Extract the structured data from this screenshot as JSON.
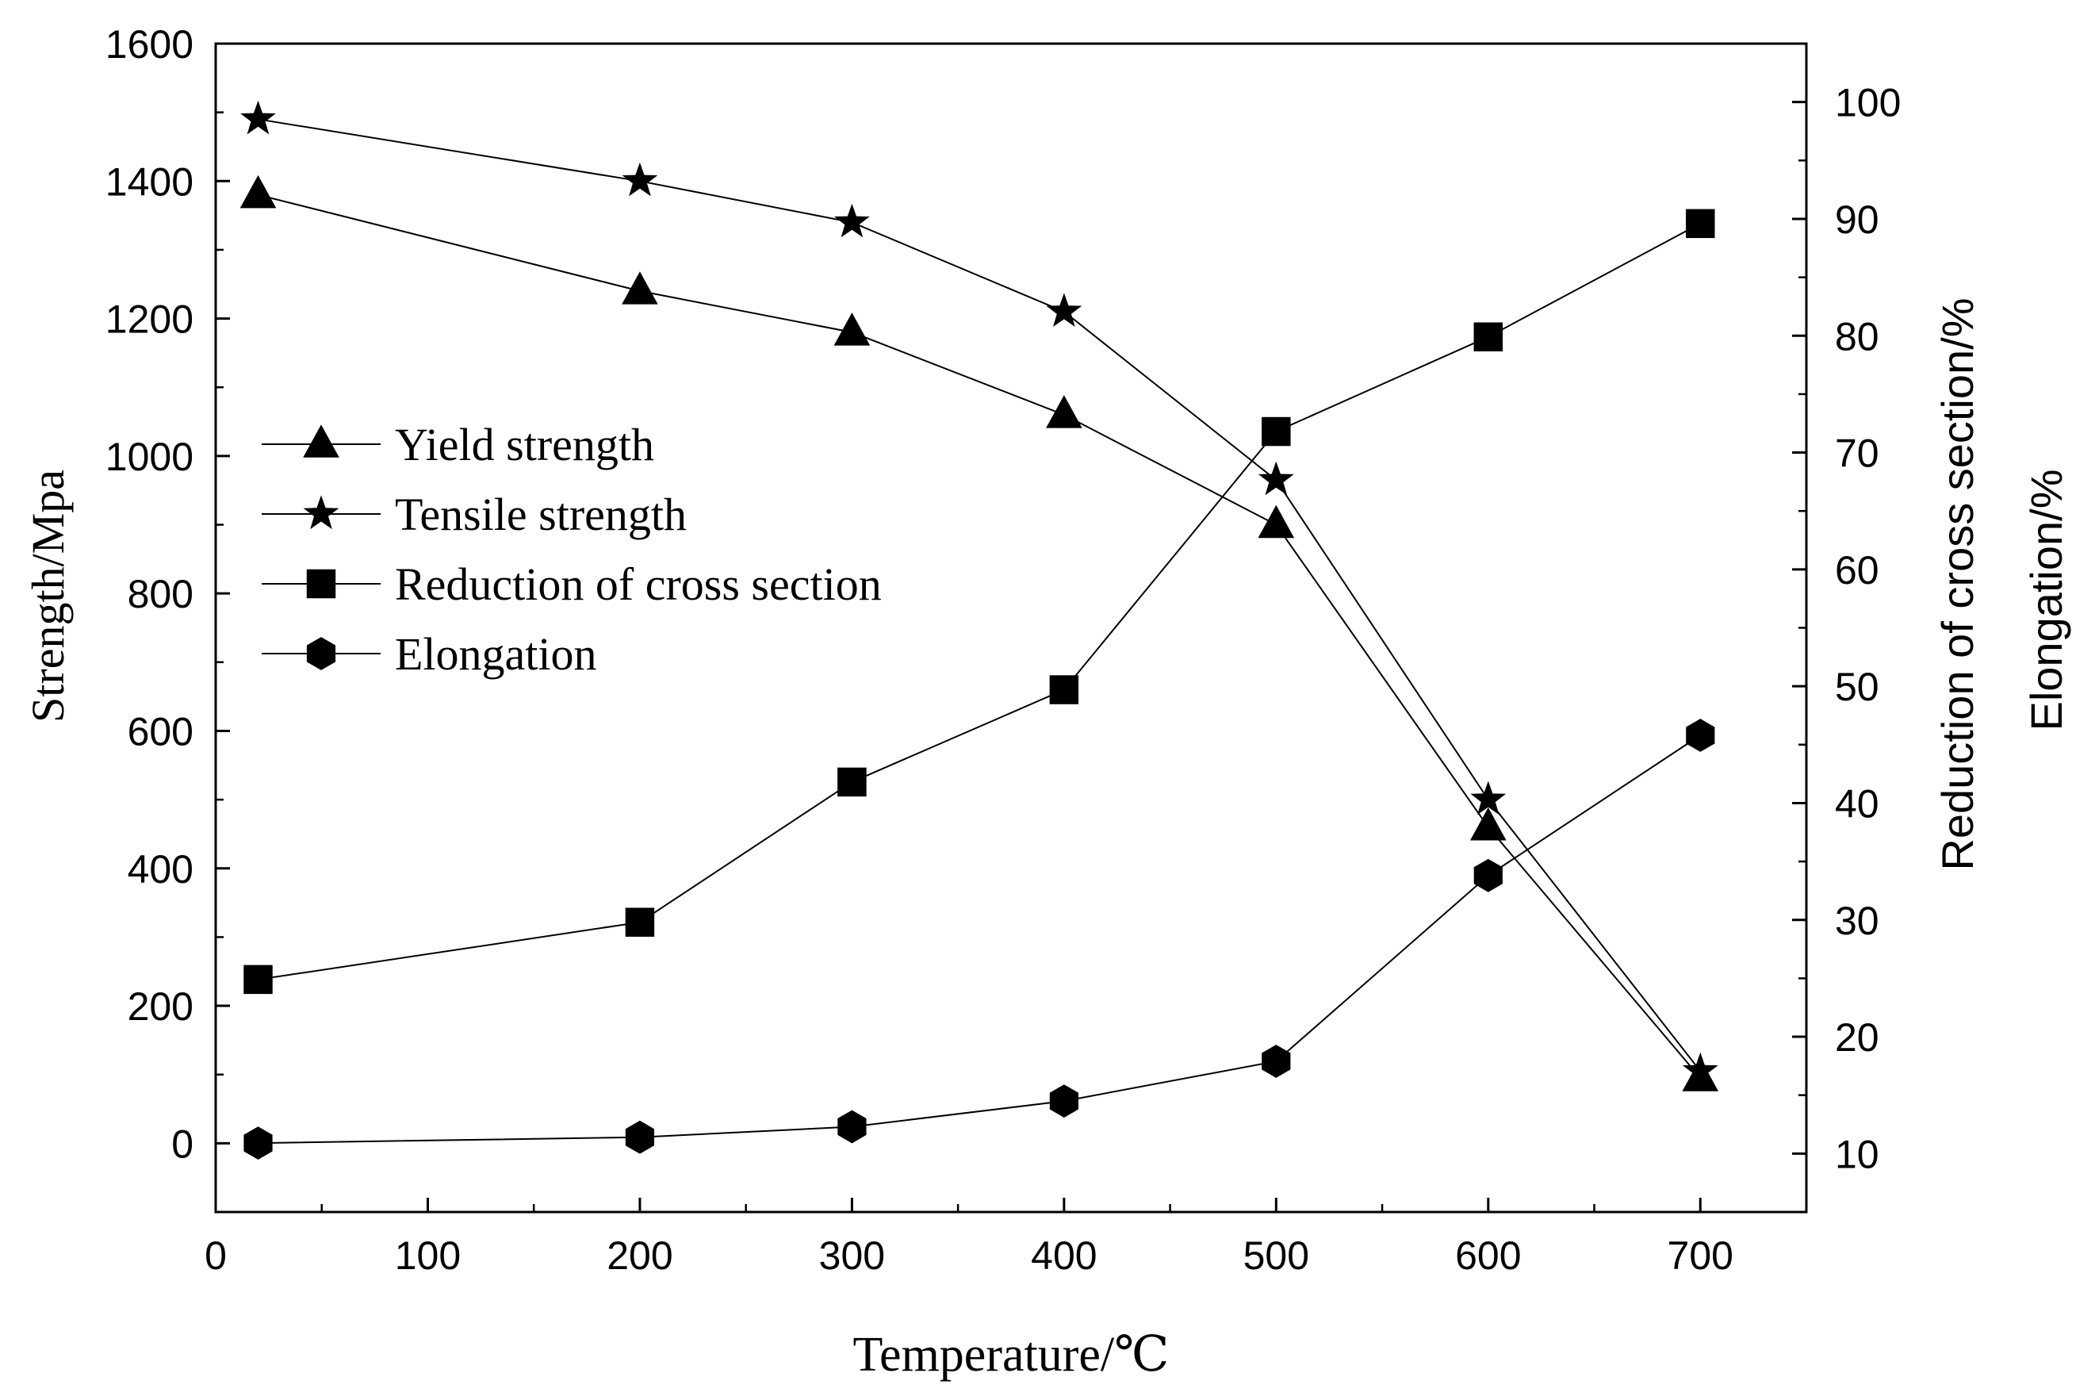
{
  "chart_data": {
    "type": "line",
    "x": [
      20,
      200,
      300,
      400,
      500,
      600,
      700
    ],
    "xlabel": "Temperature/℃",
    "xlim": [
      0,
      750
    ],
    "xticks": [
      0,
      100,
      200,
      300,
      400,
      500,
      600,
      700
    ],
    "ylabel_left": "Strength/Mpa",
    "ylim_left": [
      -100,
      1600
    ],
    "yticks_left": [
      0,
      200,
      400,
      600,
      800,
      1000,
      1200,
      1400,
      1600
    ],
    "ylabel_right_1": "Reduction of cross section/%",
    "ylabel_right_2": "Elongation/%",
    "ylim_right": [
      5,
      105
    ],
    "yticks_right": [
      10,
      20,
      30,
      40,
      50,
      60,
      70,
      80,
      90,
      100
    ],
    "grid": false,
    "legend_position": "center-left",
    "series": [
      {
        "name": "Yield strength",
        "axis": "left",
        "marker": "triangle",
        "values": [
          1380,
          1240,
          1180,
          1060,
          900,
          460,
          95
        ]
      },
      {
        "name": "Tensile strength",
        "axis": "left",
        "marker": "star",
        "values": [
          1490,
          1400,
          1340,
          1210,
          965,
          500,
          105
        ]
      },
      {
        "name": "Reduction of cross section",
        "axis": "right",
        "marker": "square",
        "values": [
          24.9,
          29.8,
          41.8,
          49.7,
          71.8,
          79.9,
          89.6
        ]
      },
      {
        "name": "Elongation",
        "axis": "right",
        "marker": "hexagon",
        "values": [
          10.9,
          11.4,
          12.3,
          14.5,
          17.9,
          33.8,
          45.8
        ]
      }
    ]
  }
}
